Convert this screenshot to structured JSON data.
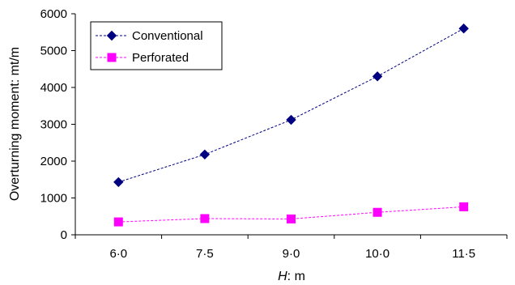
{
  "chart_data": {
    "type": "line",
    "categories": [
      "6·0",
      "7·5",
      "9·0",
      "10·0",
      "11·5"
    ],
    "series": [
      {
        "name": "Conventional",
        "values": [
          1430,
          2180,
          3120,
          4300,
          5600
        ],
        "color": "#000080",
        "marker": "diamond",
        "line_style": "dashed"
      },
      {
        "name": "Perforated",
        "values": [
          350,
          440,
          430,
          610,
          760
        ],
        "color": "#ff00ff",
        "marker": "square",
        "line_style": "dashed"
      }
    ],
    "xlabel_italic": "H",
    "xlabel_rest": ": m",
    "ylabel": "Overturning moment: mt/m",
    "ylim": [
      0,
      6000
    ],
    "yticks": [
      0,
      1000,
      2000,
      3000,
      4000,
      5000,
      6000
    ],
    "ytick_labels": [
      "0",
      "1000",
      "2000",
      "3000",
      "4000",
      "5000",
      "6000"
    ],
    "grid": false,
    "legend_position": "top-left"
  }
}
